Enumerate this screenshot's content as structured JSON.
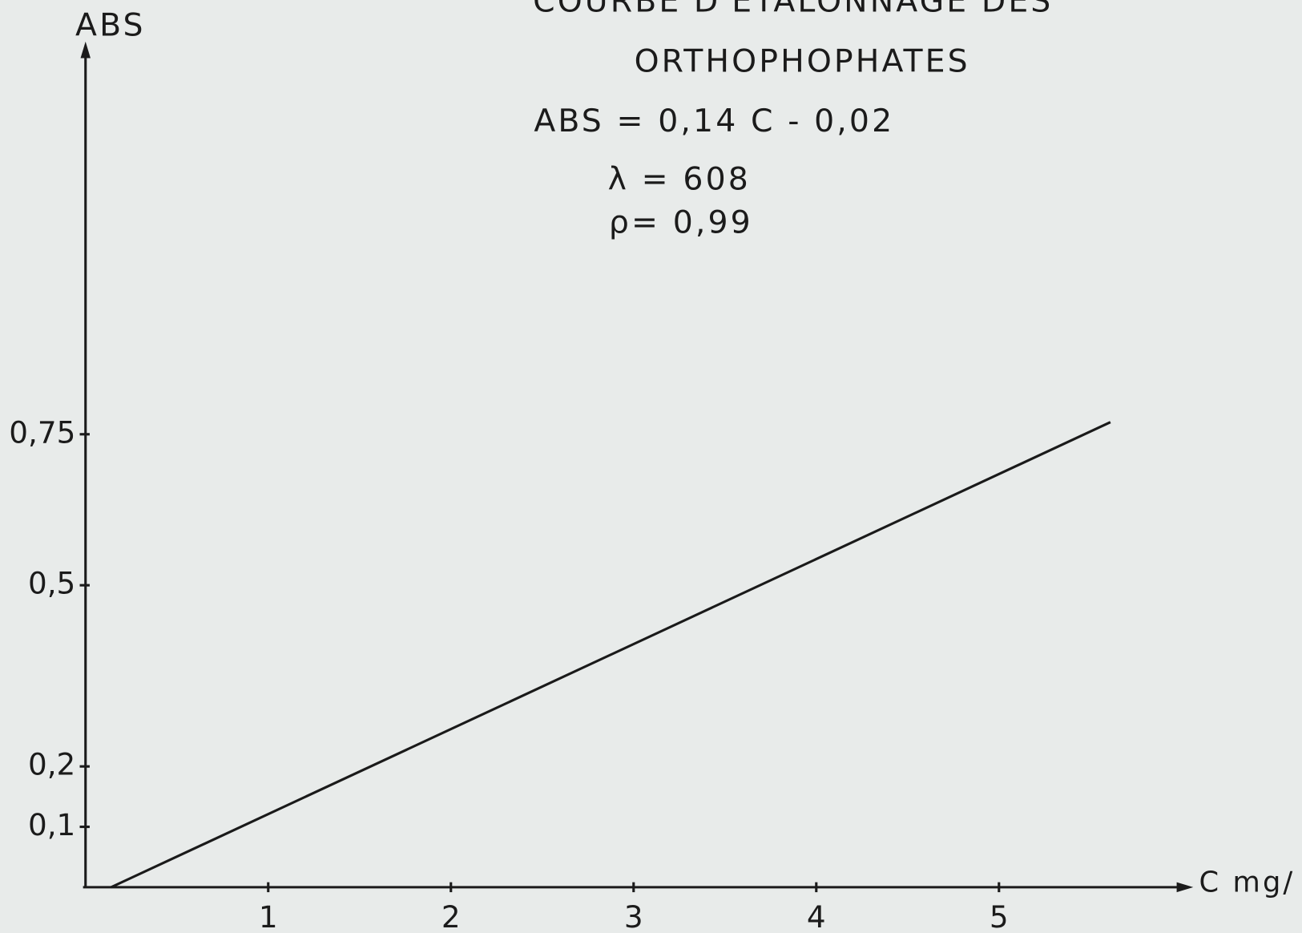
{
  "chart_data": {
    "type": "line",
    "title": "COURBE D'ETALONNAGE DES",
    "subtitle": "ORTHOPHOPHATES",
    "annotations": [
      "ABS = 0,14 C - 0,02",
      "λ = 608",
      "ρ= 0,99"
    ],
    "y_label": "ABS",
    "x_label": "C mg/",
    "x": [
      0.14,
      5.61
    ],
    "values": [
      0,
      0.77
    ],
    "color": "#1a1a1a",
    "xlim": [
      0,
      6.04
    ],
    "ylim": [
      0,
      1.39
    ],
    "xticks": [
      1,
      2,
      3,
      4,
      5
    ],
    "yticks": [
      {
        "value": 0.1,
        "label": "0,1"
      },
      {
        "value": 0.2,
        "label": "0,2"
      },
      {
        "value": 0.5,
        "label": "0,5"
      },
      {
        "value": 0.75,
        "label": "0,75"
      }
    ]
  }
}
